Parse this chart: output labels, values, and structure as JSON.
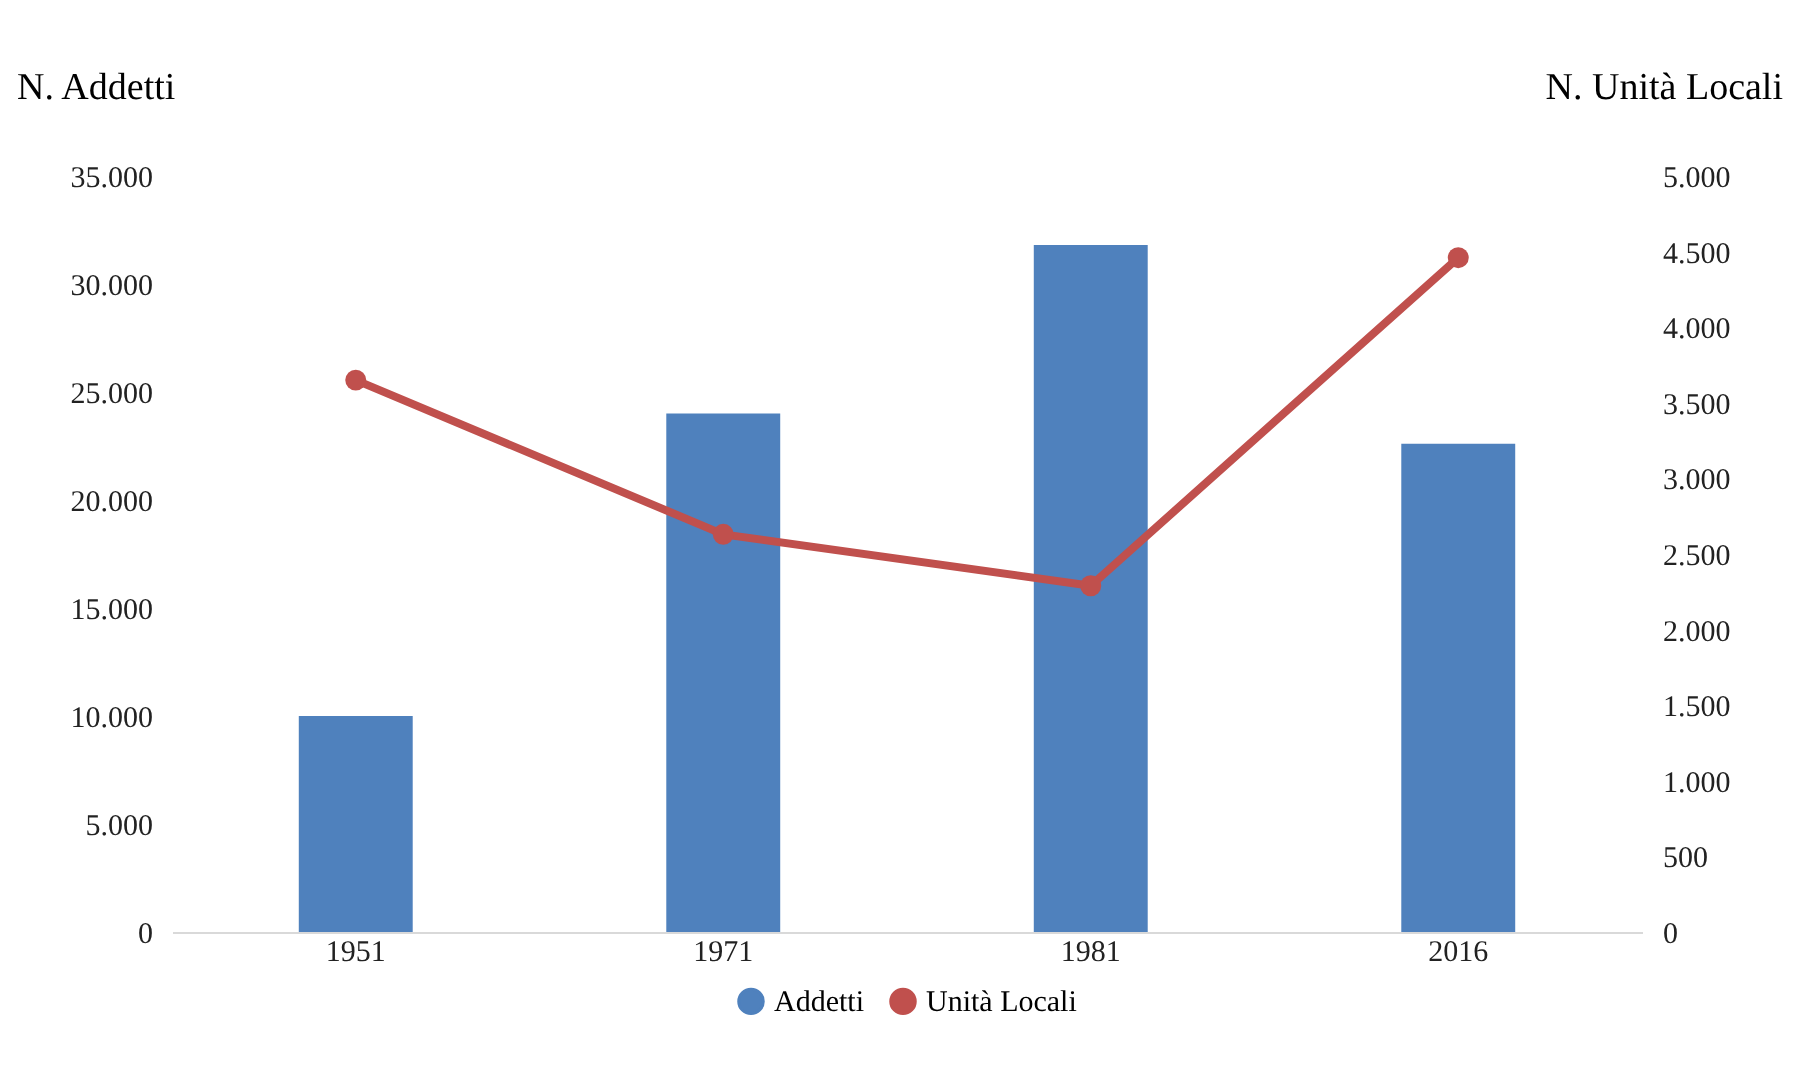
{
  "chart_data": {
    "type": "bar",
    "categories": [
      "1951",
      "1971",
      "1981",
      "2016"
    ],
    "ylabel": "N. Addetti",
    "y2label": "N. Unità Locali",
    "series": [
      {
        "name": "Addetti",
        "color": "#4f81bd",
        "values": [
          10000,
          24000,
          31800,
          22600
        ]
      },
      {
        "name": "Unità Locali",
        "type": "line",
        "axis": "y2",
        "color": "#c0504d",
        "values": [
          3650,
          2630,
          2290,
          4460
        ]
      }
    ],
    "ylim": [
      0,
      35000
    ],
    "yticks": [
      {
        "value": 0,
        "label": "0"
      },
      {
        "value": 5000,
        "label": "5.000"
      },
      {
        "value": 10000,
        "label": "10.000"
      },
      {
        "value": 15000,
        "label": "15.000"
      },
      {
        "value": 20000,
        "label": "20.000"
      },
      {
        "value": 25000,
        "label": "25.000"
      },
      {
        "value": 30000,
        "label": "30.000"
      },
      {
        "value": 35000,
        "label": "35.000"
      }
    ],
    "y2lim": [
      0,
      5000
    ],
    "y2ticks": [
      {
        "value": 0,
        "label": "0"
      },
      {
        "value": 500,
        "label": "500"
      },
      {
        "value": 1000,
        "label": "1.000"
      },
      {
        "value": 1500,
        "label": "1.500"
      },
      {
        "value": 2000,
        "label": "2.000"
      },
      {
        "value": 2500,
        "label": "2.500"
      },
      {
        "value": 3000,
        "label": "3.000"
      },
      {
        "value": 3500,
        "label": "3.500"
      },
      {
        "value": 4000,
        "label": "4.000"
      },
      {
        "value": 4500,
        "label": "4.500"
      },
      {
        "value": 5000,
        "label": "5.000"
      }
    ],
    "legend": "bottom",
    "marker": "circle",
    "grid": false
  }
}
